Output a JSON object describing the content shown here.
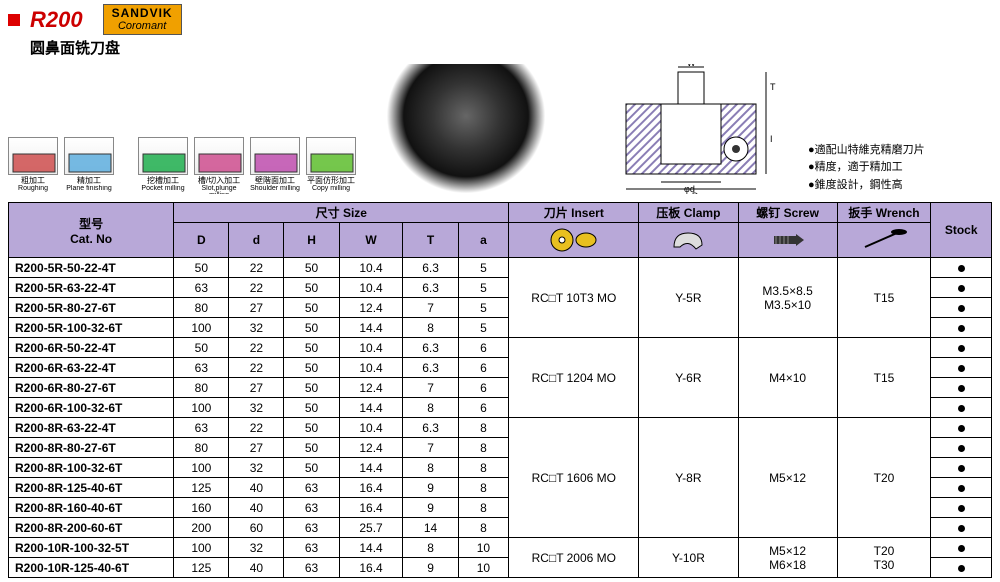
{
  "header": {
    "product_code": "R200",
    "subtitle_cn": "圆鼻面铣刀盘",
    "brand_top": "SANDVIK",
    "brand_bot": "Coromant"
  },
  "icons": [
    {
      "cn": "粗加工",
      "en": "Roughing",
      "fill": "#c44"
    },
    {
      "cn": "精加工",
      "en": "Plane finishing",
      "fill": "#5ad"
    },
    {
      "cn": "挖槽加工",
      "en": "Pocket milling",
      "fill": "#1a4"
    },
    {
      "cn": "槽/切入加工",
      "en": "Slot,plunge milling",
      "fill": "#c48"
    },
    {
      "cn": "壁階面加工",
      "en": "Shoulder milling",
      "fill": "#b4a"
    },
    {
      "cn": "平面仿形加工",
      "en": "Copy milling",
      "fill": "#5b2"
    }
  ],
  "notes": [
    "●適配山特維克精磨刀片",
    "●精度，適于精加工",
    "●錐度設計，鋼性高"
  ],
  "diagram_labels": {
    "W": "W",
    "T": "T",
    "I": "I",
    "d": "φd",
    "D": "φD"
  },
  "table": {
    "headers": {
      "cat_cn": "型号",
      "cat_en": "Cat. No",
      "size_cn": "尺寸",
      "size_en": "Size",
      "D": "D",
      "d": "d",
      "H": "H",
      "W": "W",
      "T": "T",
      "a": "a",
      "insert_cn": "刀片",
      "insert_en": "Insert",
      "clamp_cn": "压板",
      "clamp_en": "Clamp",
      "screw_cn": "螺钉",
      "screw_en": "Screw",
      "wrench_cn": "扳手",
      "wrench_en": "Wrench",
      "stock": "Stock"
    },
    "rows": [
      {
        "cat": "R200-5R-50-22-4T",
        "D": "50",
        "d": "22",
        "H": "50",
        "W": "10.4",
        "T": "6.3",
        "a": "5"
      },
      {
        "cat": "R200-5R-63-22-4T",
        "D": "63",
        "d": "22",
        "H": "50",
        "W": "10.4",
        "T": "6.3",
        "a": "5"
      },
      {
        "cat": "R200-5R-80-27-6T",
        "D": "80",
        "d": "27",
        "H": "50",
        "W": "12.4",
        "T": "7",
        "a": "5"
      },
      {
        "cat": "R200-5R-100-32-6T",
        "D": "100",
        "d": "32",
        "H": "50",
        "W": "14.4",
        "T": "8",
        "a": "5"
      },
      {
        "cat": "R200-6R-50-22-4T",
        "D": "50",
        "d": "22",
        "H": "50",
        "W": "10.4",
        "T": "6.3",
        "a": "6"
      },
      {
        "cat": "R200-6R-63-22-4T",
        "D": "63",
        "d": "22",
        "H": "50",
        "W": "10.4",
        "T": "6.3",
        "a": "6"
      },
      {
        "cat": "R200-6R-80-27-6T",
        "D": "80",
        "d": "27",
        "H": "50",
        "W": "12.4",
        "T": "7",
        "a": "6"
      },
      {
        "cat": "R200-6R-100-32-6T",
        "D": "100",
        "d": "32",
        "H": "50",
        "W": "14.4",
        "T": "8",
        "a": "6"
      },
      {
        "cat": "R200-8R-63-22-4T",
        "D": "63",
        "d": "22",
        "H": "50",
        "W": "10.4",
        "T": "6.3",
        "a": "8"
      },
      {
        "cat": "R200-8R-80-27-6T",
        "D": "80",
        "d": "27",
        "H": "50",
        "W": "12.4",
        "T": "7",
        "a": "8"
      },
      {
        "cat": "R200-8R-100-32-6T",
        "D": "100",
        "d": "32",
        "H": "50",
        "W": "14.4",
        "T": "8",
        "a": "8"
      },
      {
        "cat": "R200-8R-125-40-6T",
        "D": "125",
        "d": "40",
        "H": "63",
        "W": "16.4",
        "T": "9",
        "a": "8"
      },
      {
        "cat": "R200-8R-160-40-6T",
        "D": "160",
        "d": "40",
        "H": "63",
        "W": "16.4",
        "T": "9",
        "a": "8"
      },
      {
        "cat": "R200-8R-200-60-6T",
        "D": "200",
        "d": "60",
        "H": "63",
        "W": "25.7",
        "T": "14",
        "a": "8"
      },
      {
        "cat": "R200-10R-100-32-5T",
        "D": "100",
        "d": "32",
        "H": "63",
        "W": "14.4",
        "T": "8",
        "a": "10"
      },
      {
        "cat": "R200-10R-125-40-6T",
        "D": "125",
        "d": "40",
        "H": "63",
        "W": "16.4",
        "T": "9",
        "a": "10"
      }
    ],
    "groups": [
      {
        "start": 0,
        "span": 4,
        "insert": "RC□T 10T3 MO",
        "clamp": "Y-5R",
        "screw": "M3.5×8.5\nM3.5×10",
        "wrench": "T15"
      },
      {
        "start": 4,
        "span": 4,
        "insert": "RC□T 1204 MO",
        "clamp": "Y-6R",
        "screw": "M4×10",
        "wrench": "T15"
      },
      {
        "start": 8,
        "span": 6,
        "insert": "RC□T 1606 MO",
        "clamp": "Y-8R",
        "screw": "M5×12",
        "wrench": "T20"
      },
      {
        "start": 14,
        "span": 2,
        "insert": "RC□T 2006 MO",
        "clamp": "Y-10R",
        "screw": "M5×12\nM6×18",
        "wrench": "T20\nT30"
      }
    ]
  },
  "colors": {
    "purple": "#b8a8d8",
    "border": "#000000"
  }
}
